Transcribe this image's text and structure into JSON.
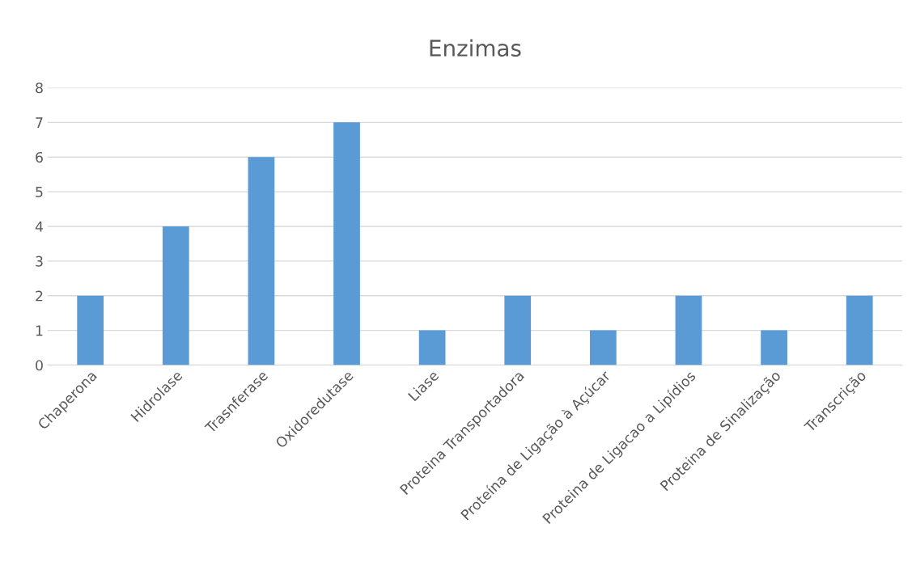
{
  "chart_data": {
    "type": "bar",
    "title": "Enzimas",
    "categories": [
      "Chaperona",
      "Hidrolase",
      "Trasnferase",
      "Oxidoredutase",
      "Liase",
      "Proteina Transportadora",
      "Proteína de Ligação à Açúcar",
      "Proteina de Ligacao a Lipídios",
      "Proteina de Sinalização",
      "Transcrição"
    ],
    "values": [
      2,
      4,
      6,
      7,
      1,
      2,
      1,
      2,
      1,
      2
    ],
    "color": "#5b9bd5",
    "ylim": [
      0,
      8
    ],
    "yticks": [
      0,
      1,
      2,
      3,
      4,
      5,
      6,
      7,
      8
    ],
    "grid": "y"
  }
}
